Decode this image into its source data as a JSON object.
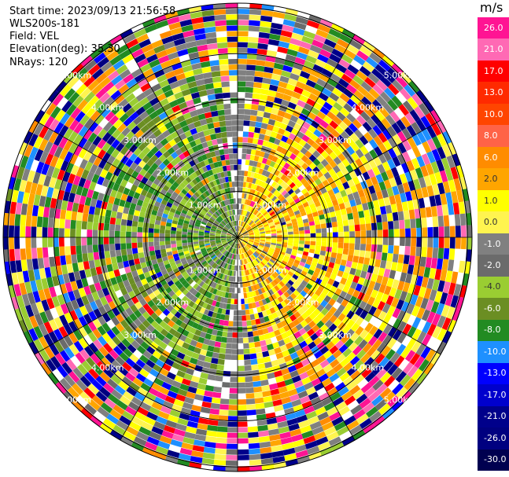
{
  "header": {
    "start_time": "Start time: 2023/09/13 21:56:58",
    "instrument": "WLS200s-181",
    "field": "Field: VEL",
    "elevation": "Elevation(deg): 35.30",
    "nrays": "NRays: 120"
  },
  "colorbar": {
    "unit": "m/s",
    "ticks": [
      "26.0",
      "21.0",
      "17.0",
      "13.0",
      "10.0",
      "8.0",
      "6.0",
      "2.0",
      "1.0",
      "0.0",
      "-1.0",
      "-2.0",
      "-4.0",
      "-6.0",
      "-8.0",
      "-10.0",
      "-13.0",
      "-17.0",
      "-21.0",
      "-26.0",
      "-30.0"
    ],
    "colors": [
      "#ff1493",
      "#ff69b4",
      "#ff0000",
      "#ff2a00",
      "#ff4500",
      "#ff6347",
      "#ff8c00",
      "#ffa500",
      "#ffff00",
      "#fff44f",
      "#808080",
      "#6b6b6b",
      "#9acd32",
      "#6b8e23",
      "#228b22",
      "#1e90ff",
      "#0000ff",
      "#0000cd",
      "#00008b",
      "#000080",
      "#000050"
    ]
  },
  "chart_data": {
    "type": "heatmap",
    "title": "",
    "field": "VEL",
    "unit": "m/s",
    "nrays": 120,
    "elevation_deg": 35.3,
    "range_rings_km": [
      1.0,
      2.0,
      3.0,
      4.0,
      5.0
    ],
    "range_ring_labels": [
      "1.00km",
      "2.00km",
      "3.00km",
      "4.00km",
      "5.00km"
    ],
    "value_range": [
      -30.0,
      26.0
    ],
    "description": "Lidar radial velocity PPI; positive velocities (yellow/orange) in the east half, negative velocities (green/gray) in the west half, noisy multicolored returns beyond about 3 km"
  }
}
